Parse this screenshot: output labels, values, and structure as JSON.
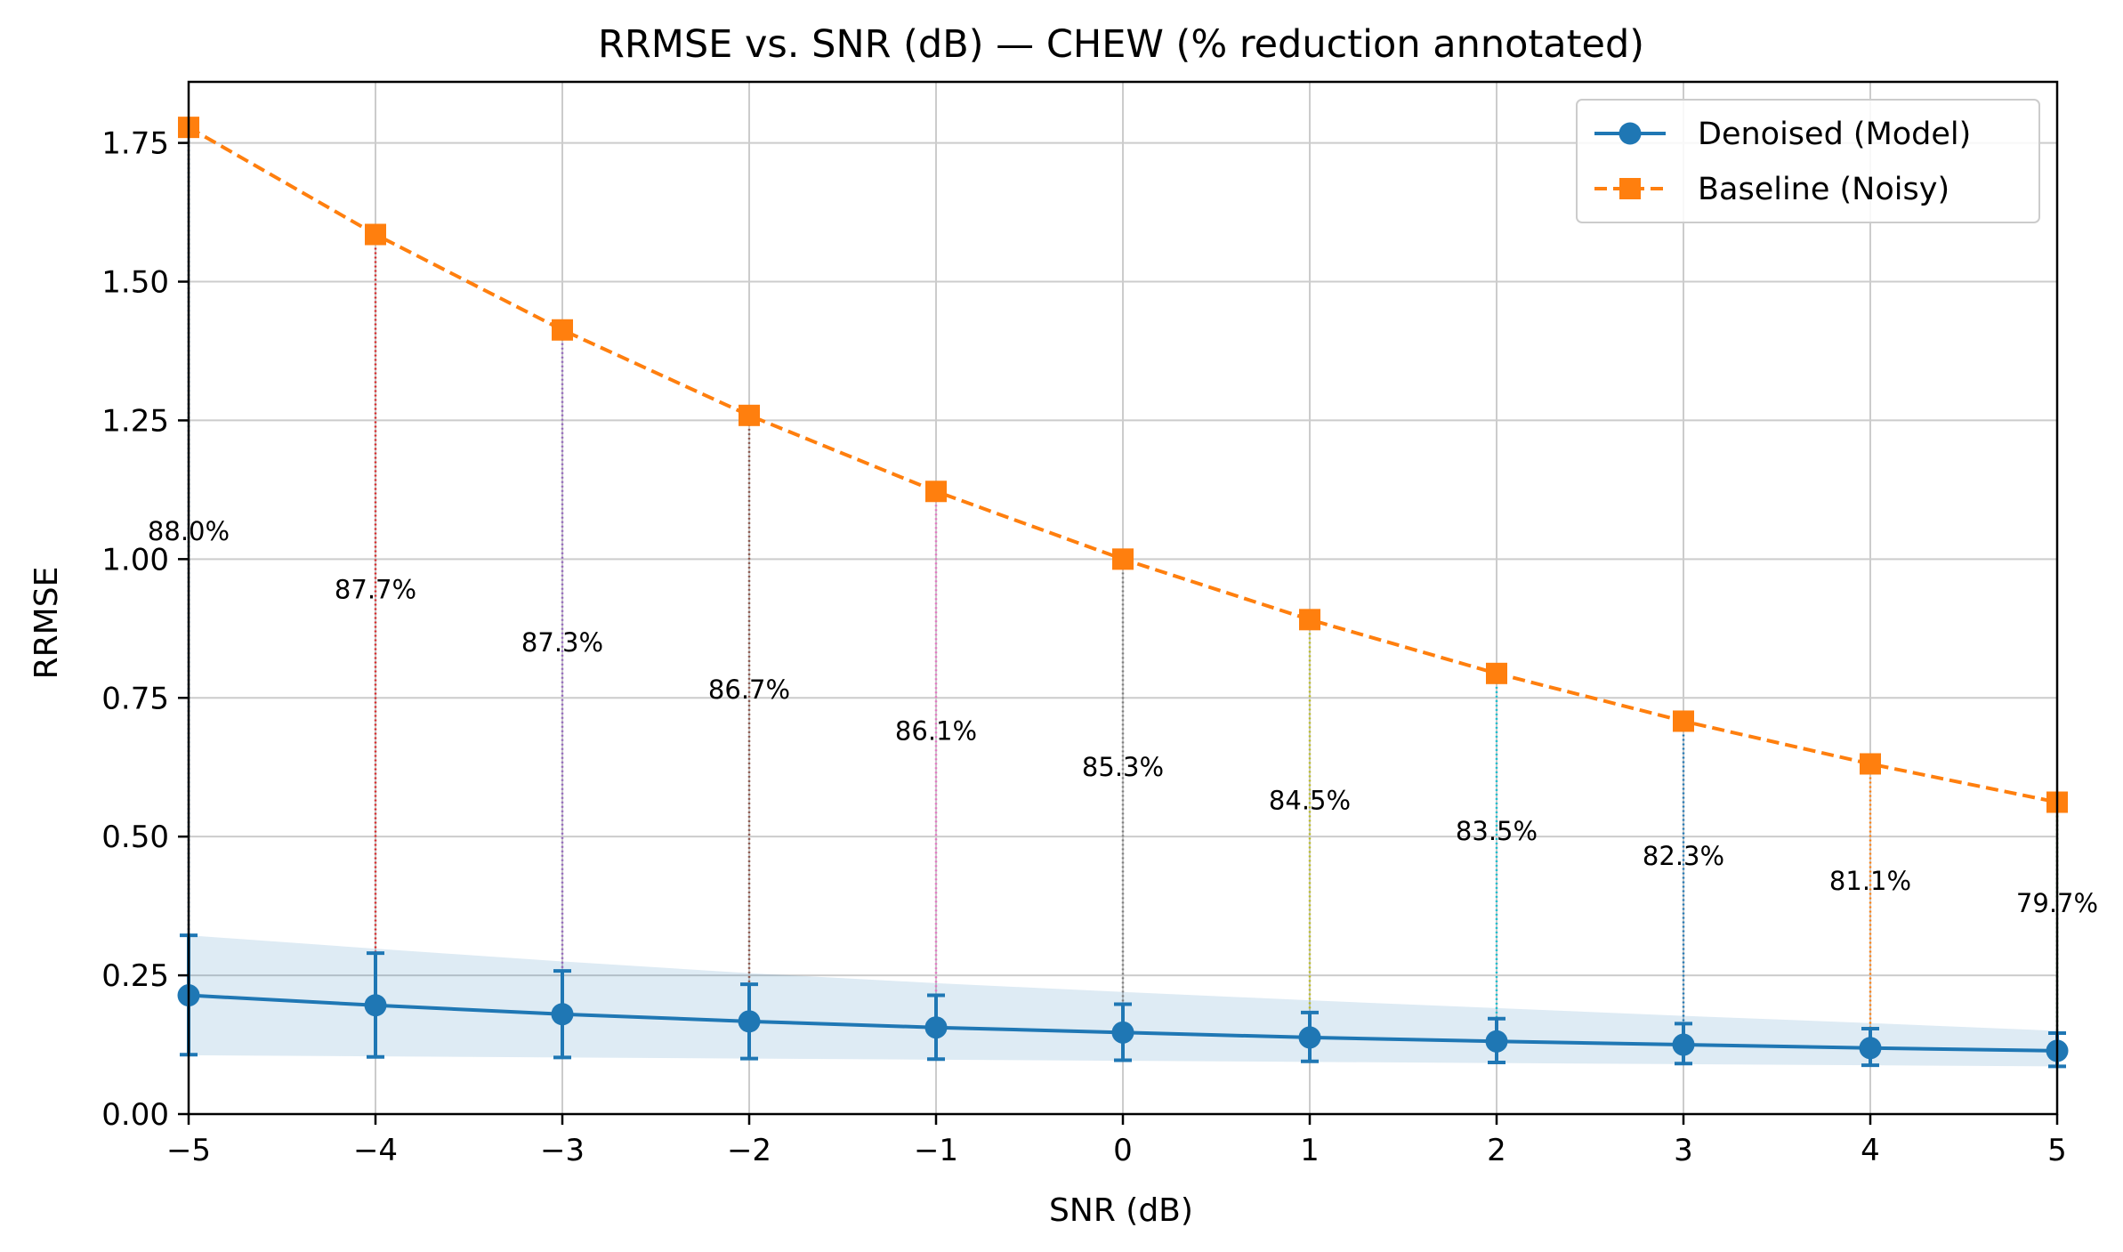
{
  "chart_data": {
    "type": "line",
    "title": "RRMSE vs. SNR (dB) — CHEW (% reduction annotated)",
    "xlabel": "SNR (dB)",
    "ylabel": "RRMSE",
    "xlim": [
      -5,
      5
    ],
    "ylim": [
      0,
      1.86
    ],
    "x": [
      -5,
      -4,
      -3,
      -2,
      -1,
      0,
      1,
      2,
      3,
      4,
      5
    ],
    "x_tick_labels": [
      "−5",
      "−4",
      "−3",
      "−2",
      "−1",
      "0",
      "1",
      "2",
      "3",
      "4",
      "5"
    ],
    "y_ticks": [
      0,
      0.25,
      0.5,
      0.75,
      1.0,
      1.25,
      1.5,
      1.75
    ],
    "y_tick_labels": [
      "0.00",
      "0.25",
      "0.50",
      "0.75",
      "1.00",
      "1.25",
      "1.50",
      "1.75"
    ],
    "grid": true,
    "legend_position": "top-right",
    "series": [
      {
        "name": "Denoised (Model)",
        "color": "#1f77b4",
        "line_style": "solid",
        "marker": "circle",
        "values": [
          0.214,
          0.196,
          0.18,
          0.167,
          0.156,
          0.147,
          0.138,
          0.131,
          0.125,
          0.119,
          0.114
        ],
        "error_low": [
          0.107,
          0.103,
          0.102,
          0.1,
          0.099,
          0.097,
          0.095,
          0.093,
          0.091,
          0.088,
          0.086
        ],
        "error_high": [
          0.322,
          0.29,
          0.258,
          0.234,
          0.214,
          0.198,
          0.183,
          0.172,
          0.163,
          0.154,
          0.146
        ],
        "band_low": [
          0.106,
          0.104,
          0.102,
          0.1,
          0.098,
          0.096,
          0.094,
          0.092,
          0.09,
          0.088,
          0.086
        ],
        "band_high": [
          0.322,
          0.298,
          0.275,
          0.254,
          0.236,
          0.22,
          0.205,
          0.191,
          0.177,
          0.164,
          0.15
        ],
        "band_color": "#1f77b4"
      },
      {
        "name": "Baseline (Noisy)",
        "color": "#ff7f0e",
        "line_style": "dashed",
        "marker": "square",
        "values": [
          1.778,
          1.585,
          1.413,
          1.259,
          1.122,
          1.0,
          0.891,
          0.794,
          0.708,
          0.631,
          0.562
        ]
      }
    ],
    "connector_colors": [
      "#1f77b4",
      "#d62728",
      "#9467bd",
      "#8c564b",
      "#e377c2",
      "#7f7f7f",
      "#bcbd22",
      "#17becf",
      "#1f77b4",
      "#ff7f0e",
      "#2ca02c"
    ],
    "annotations": [
      {
        "x": -5,
        "y": 1.05,
        "text": "88.0%"
      },
      {
        "x": -4,
        "y": 0.945,
        "text": "87.7%"
      },
      {
        "x": -3,
        "y": 0.85,
        "text": "87.3%"
      },
      {
        "x": -2,
        "y": 0.765,
        "text": "86.7%"
      },
      {
        "x": -1,
        "y": 0.69,
        "text": "86.1%"
      },
      {
        "x": 0,
        "y": 0.625,
        "text": "85.3%"
      },
      {
        "x": 1,
        "y": 0.565,
        "text": "84.5%"
      },
      {
        "x": 2,
        "y": 0.51,
        "text": "83.5%"
      },
      {
        "x": 3,
        "y": 0.465,
        "text": "82.3%"
      },
      {
        "x": 4,
        "y": 0.42,
        "text": "81.1%"
      },
      {
        "x": 5,
        "y": 0.38,
        "text": "79.7%"
      }
    ]
  }
}
